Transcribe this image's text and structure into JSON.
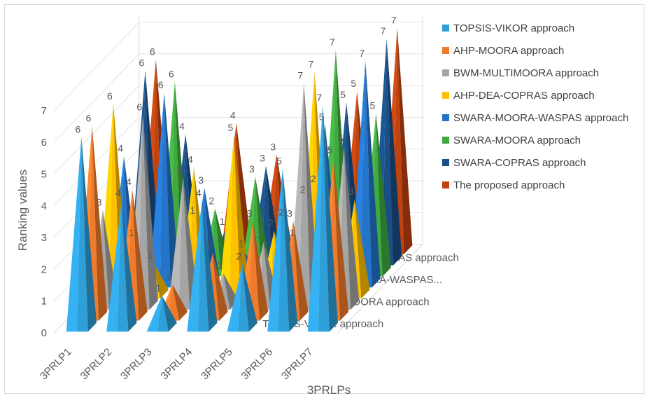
{
  "chart_data": {
    "type": "bar",
    "subtype": "3d-pyramid-column",
    "xlabel": "3PRLPs",
    "ylabel": "Ranking values",
    "ylim": [
      0,
      7
    ],
    "yticks": [
      "0",
      "1",
      "2",
      "3",
      "4",
      "5",
      "6",
      "7"
    ],
    "grid": true,
    "legend_position": "right",
    "categories": [
      "3PRLP1",
      "3PRLP2",
      "3PRLP3",
      "3PRLP4",
      "3PRLP5",
      "3PRLP6",
      "3PRLP7"
    ],
    "depth_axis_labels": [
      "TOPSIS-VIKOR approach",
      "BWM-MULTIMOORA approach",
      "SWARA-MOORA-WASPAS...",
      "SWARA-COPRAS approach"
    ],
    "series": [
      {
        "name": "TOPSIS-VIKOR approach",
        "color": "#2e9fd9",
        "values": [
          6,
          4,
          1,
          4,
          2,
          5,
          7
        ]
      },
      {
        "name": "AHP-MOORA approach",
        "color": "#f07b2b",
        "values": [
          6,
          4,
          1,
          2,
          3,
          3,
          5
        ]
      },
      {
        "name": "BWM-MULTIMOORA approach",
        "color": "#a5a5a5",
        "values": [
          3,
          6,
          4,
          1,
          2,
          7,
          5
        ]
      },
      {
        "name": "AHP-DEA-COPRAS approach",
        "color": "#ffc000",
        "values": [
          6,
          1,
          4,
          5,
          2,
          7,
          3
        ]
      },
      {
        "name": "SWARA-MOORA-WASPAS approach",
        "color": "#2474c9",
        "values": [
          4,
          6,
          3,
          1,
          2,
          5,
          7
        ]
      },
      {
        "name": "SWARA-MOORA approach",
        "color": "#3faa3f",
        "values": [
          1,
          6,
          2,
          3,
          1,
          7,
          5
        ]
      },
      {
        "name": "SWARA-COPRAS approach",
        "color": "#1a4f86",
        "values": [
          6,
          4,
          1,
          3,
          2,
          5,
          7
        ]
      },
      {
        "name": "The proposed approach",
        "color": "#c0420e",
        "values": [
          6,
          1,
          4,
          3,
          2,
          5,
          7
        ]
      }
    ]
  }
}
